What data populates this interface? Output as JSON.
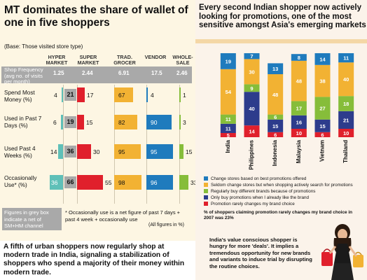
{
  "left": {
    "title": "MT dominates the share of wallet of one in five shoppers",
    "base": "(Base: Those visited store type)",
    "columns": [
      "HYPER MARKET",
      "SUPER MARKET",
      "TRAD. GROCER",
      "VENDOR",
      "WHOLE-SALE"
    ],
    "shop_frequency_label": "Shop Frequency (avg no. of visits per month)",
    "footnote_grey": "Figures in grey box indicate a net of SM+HM channel",
    "footnote_net": "* Occasionally use is a net figure of past 7 days + past 4 week + occasionally use",
    "all_figures": "(All figures in %)",
    "caption": "A fifth of urban shoppers now regularly shop at modern trade in India, signaling a stabilization of shoppers who spend a majority of their money within modern trade."
  },
  "right": {
    "title": "Every second Indian shopper now actively looking for promotions, one of the most sensitive amongst Asia's emerging markets",
    "legend": [
      {
        "label": "Change stores based on best promotions offered",
        "color": "#1f7bbd"
      },
      {
        "label": "Seldom change stores but when shopping actively search for promotions",
        "color": "#f2b233"
      },
      {
        "label": "Regularly buy different brands because of promotions",
        "color": "#86bd3a"
      },
      {
        "label": "Only buy promotions when I already like the brand",
        "color": "#2d3c8c"
      },
      {
        "label": "Promotion rarely changes my brand choice",
        "color": "#e0202c"
      }
    ],
    "note": "% of shoppers claiming promotion rarely changes my brand choice in 2007 was 23%",
    "quote": "India's value conscious shopper is hungry for more 'deals'. It implies a tremendous opportunity for new brands and variants to induce trial by disrupting the routine choices."
  },
  "chart_data": [
    {
      "type": "table",
      "title": "MT dominates the share of wallet of one in five shoppers",
      "columns": [
        "HYPER MARKET",
        "SUPER MARKET",
        "TRAD. GROCER",
        "VENDOR",
        "WHOLE-SALE"
      ],
      "shop_frequency": [
        "1.25",
        "2.44",
        "6.91",
        "17.5",
        "2.46"
      ],
      "rows": [
        {
          "label": "Spend Most Money (%)",
          "hyper": 4,
          "net": 21,
          "super": 17,
          "trad": 67,
          "vendor": 4,
          "whole": 1
        },
        {
          "label": "Used in Past 7 Days (%)",
          "hyper": 6,
          "net": 19,
          "super": 15,
          "trad": 82,
          "vendor": 90,
          "whole": 3
        },
        {
          "label": "Used Past 4 Weeks (%)",
          "hyper": 14,
          "net": 36,
          "super": 30,
          "trad": 95,
          "vendor": 95,
          "whole": 15
        },
        {
          "label": "Occasionally Use* (%)",
          "hyper": 36,
          "net": 66,
          "super": 55,
          "trad": 98,
          "vendor": 96,
          "whole": 33
        }
      ],
      "colors": {
        "hyper": "#5fc0b8",
        "super": "#e0202c",
        "trad": "#f2b233",
        "vendor": "#1f7bbd",
        "whole": "#86bd3a",
        "net_box": "#a9a9a9"
      }
    },
    {
      "type": "bar",
      "stacked": true,
      "title": "Every second Indian shopper now actively looking for promotions, one of the most sensitive amongst Asia's emerging markets",
      "categories": [
        "India",
        "Philippines",
        "Indonesia",
        "Malaysia",
        "Vietnam",
        "Thailand"
      ],
      "series": [
        {
          "name": "Promotion rarely changes my brand choice",
          "color": "#e0202c",
          "values": [
            5,
            14,
            6,
            10,
            6,
            10
          ]
        },
        {
          "name": "Only buy promotions when I already like the brand",
          "color": "#2d3c8c",
          "values": [
            11,
            40,
            15,
            16,
            15,
            21
          ]
        },
        {
          "name": "Regularly buy different brands because of promotions",
          "color": "#86bd3a",
          "values": [
            11,
            9,
            6,
            17,
            27,
            18
          ]
        },
        {
          "name": "Seldom change stores but when shopping actively search for promotions",
          "color": "#f2b233",
          "values": [
            54,
            30,
            48,
            48,
            38,
            40
          ]
        },
        {
          "name": "Change stores based on best promotions offered",
          "color": "#1f7bbd",
          "values": [
            19,
            7,
            13,
            8,
            14,
            11
          ]
        }
      ],
      "ylim": [
        0,
        100
      ]
    }
  ]
}
